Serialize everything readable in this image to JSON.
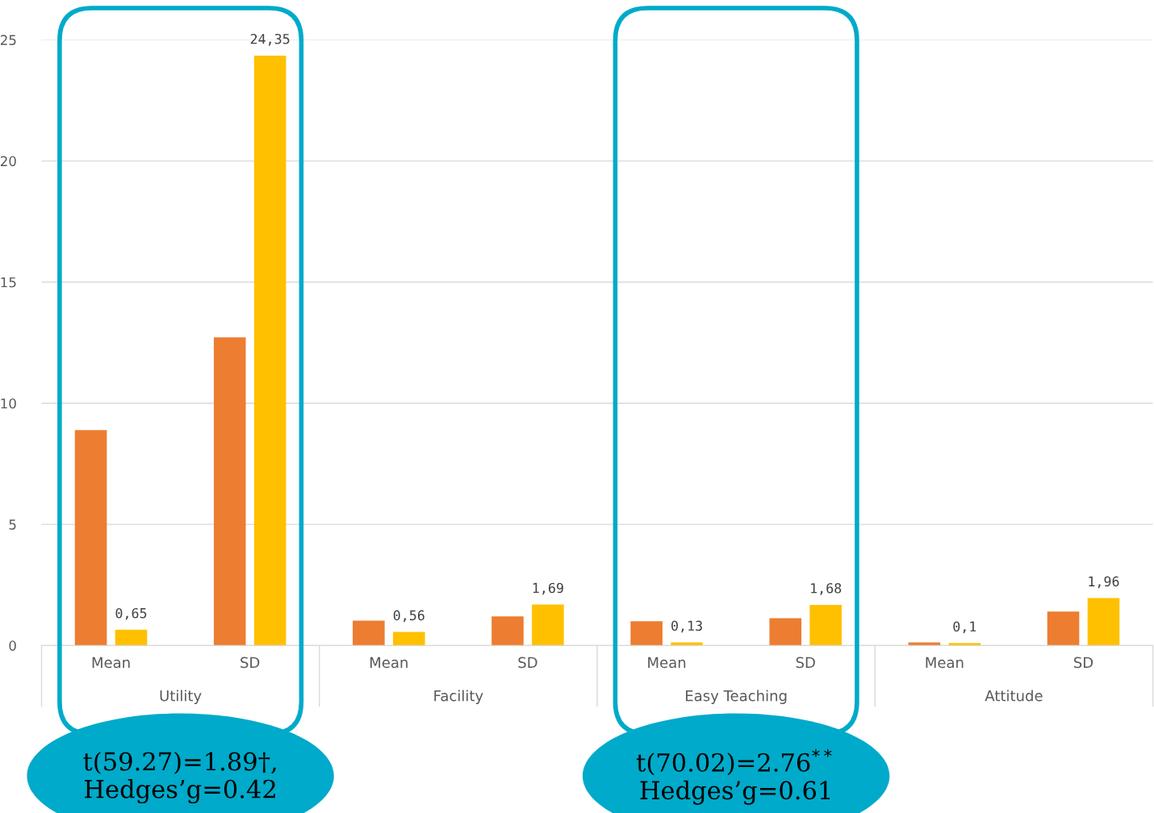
{
  "chart_data": {
    "type": "bar",
    "categories": [
      "Mean",
      "SD",
      "Mean",
      "SD",
      "Mean",
      "SD",
      "Mean",
      "SD"
    ],
    "series": [
      {
        "color": "#ed7d31",
        "values": [
          8.89,
          12.72,
          1.03,
          1.2,
          1.0,
          1.13,
          0.13,
          1.4
        ]
      },
      {
        "color": "#ffc000",
        "values": [
          0.65,
          24.35,
          0.56,
          1.69,
          0.13,
          1.68,
          0.1,
          1.96
        ],
        "value_labels": [
          "0,65",
          "24,35",
          "0,56",
          "1,69",
          "0,13",
          "1,68",
          "0,1",
          "1,96"
        ]
      }
    ],
    "ylim": [
      0,
      25
    ],
    "yticks": [
      0,
      5,
      10,
      15,
      20,
      25
    ],
    "grid": "y",
    "legend": false,
    "annotations": [
      "Utility",
      "Facility",
      "Easy Teaching",
      "Attitude",
      "t(59.27)=1.89†,\nHedges’g=0.42",
      "t(70.02)=2.76$^{**}$\nHedges’g=0.61"
    ]
  }
}
